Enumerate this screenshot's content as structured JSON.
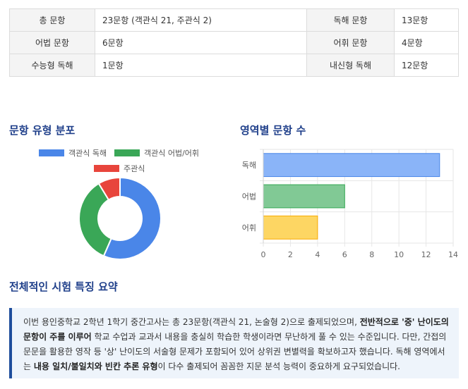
{
  "stats_table": {
    "rows": [
      {
        "l1": "총 문항",
        "v1": "23문항 (객관식 21, 주관식 2)",
        "l2": "독해 문항",
        "v2": "13문항"
      },
      {
        "l1": "어법 문항",
        "v1": "6문항",
        "l2": "어휘 문항",
        "v2": "4문항"
      },
      {
        "l1": "수능형 독해",
        "v1": "1문항",
        "l2": "내신형 독해",
        "v2": "12문항"
      }
    ]
  },
  "pie_section": {
    "title": "문항 유형 분포",
    "legend": [
      {
        "label": "객관식 독해",
        "color": "#4a86e8"
      },
      {
        "label": "객관식 어법/어휘",
        "color": "#3aa757"
      },
      {
        "label": "주관식",
        "color": "#e8453c"
      }
    ]
  },
  "bar_section": {
    "title": "영역별 문항 수"
  },
  "summary": {
    "title": "전체적인 시험 특징 요약",
    "p1": "이번 용인중학교 2학년 1학기 중간고사는 총 23문항(객관식 21, 논술형 2)으로 출제되었으며, ",
    "b1": "전반적으로 '중' 난이도의 문항이 주를 이루어",
    "p2": " 학교 수업과 교과서 내용을 충실히 학습한 학생이라면 무난하게 풀 수 있는 수준입니다. 다만, 간접의문문을 활용한 영작 등 '상' 난이도의 서술형 문제가 포함되어 있어 상위권 변별력을 확보하고자 했습니다. 독해 영역에서는 ",
    "b2": "내용 일치/불일치와 빈칸 추론 유형",
    "p3": "이 다수 출제되어 꼼꼼한 지문 분석 능력이 중요하게 요구되었습니다."
  },
  "chart_data": [
    {
      "type": "pie",
      "title": "문항 유형 분포",
      "labels": [
        "객관식 독해",
        "객관식 어법/어휘",
        "주관식"
      ],
      "values": [
        13,
        8,
        2
      ],
      "colors": [
        "#4a86e8",
        "#3aa757",
        "#e8453c"
      ],
      "donut": true,
      "legend": "top"
    },
    {
      "type": "bar",
      "orientation": "horizontal",
      "title": "영역별 문항 수",
      "categories": [
        "독해",
        "어법",
        "어휘"
      ],
      "values": [
        13,
        6,
        4
      ],
      "colors": [
        "#8ab4f8",
        "#81c995",
        "#fdd663"
      ],
      "borders": [
        "#4a86e8",
        "#34a853",
        "#f9ab00"
      ],
      "xlim": [
        0,
        14
      ],
      "xticks": [
        0,
        2,
        4,
        6,
        8,
        10,
        12,
        14
      ],
      "grid": true
    }
  ]
}
